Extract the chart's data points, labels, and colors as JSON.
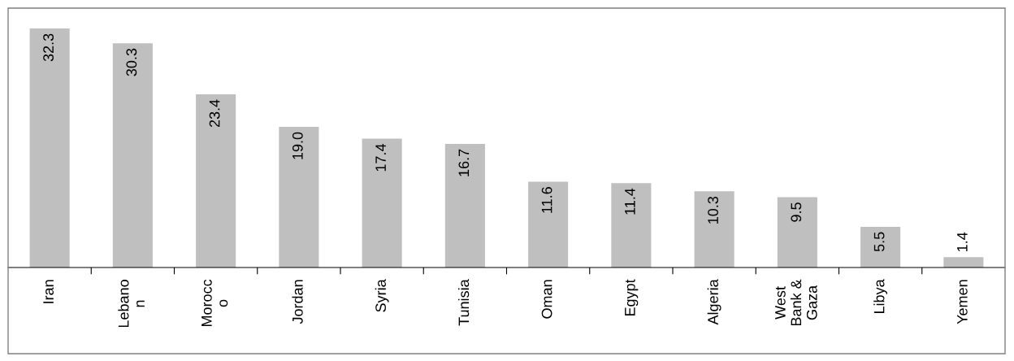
{
  "chart_data": {
    "type": "bar",
    "categories": [
      "Iran",
      "Lebano\nn",
      "Morocc\no",
      "Jordan",
      "Syria",
      "Tunisia",
      "Oman",
      "Egypt",
      "Algeria",
      "West\nBank &\nGaza",
      "Libya",
      "Yemen"
    ],
    "values": [
      32.3,
      30.3,
      23.4,
      19.0,
      17.4,
      16.7,
      11.6,
      11.4,
      10.3,
      9.5,
      5.5,
      1.4
    ],
    "value_labels": [
      "32.3",
      "30.3",
      "23.4",
      "19.0",
      "17.4",
      "16.7",
      "11.6",
      "11.4",
      "10.3",
      "9.5",
      "5.5",
      "1.4"
    ],
    "color": "#bfbfbf",
    "grid": false,
    "legend": false
  }
}
